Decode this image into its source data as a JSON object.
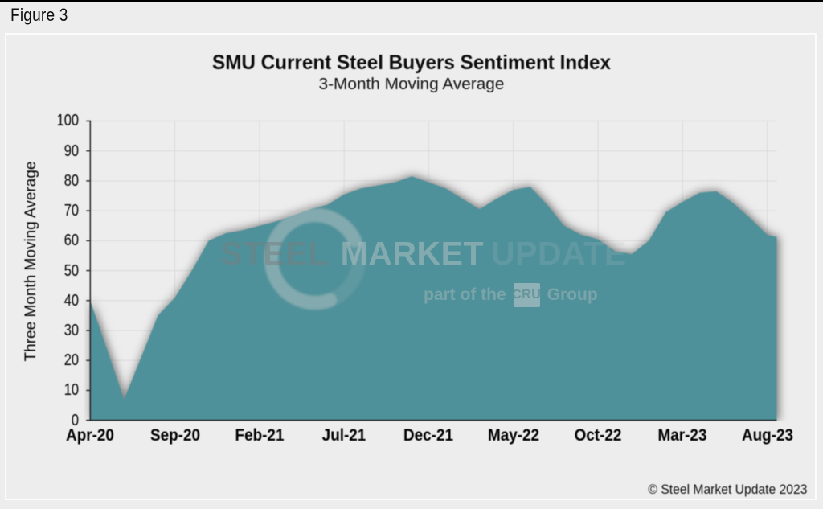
{
  "page": {
    "figure_label": "Figure 3",
    "copyright": "© Steel Market Update 2023"
  },
  "chart": {
    "title": "SMU Current Steel Buyers Sentiment Index",
    "subtitle": "3-Month Moving Average",
    "y_axis_title": "Three Month Moving Average",
    "watermark": {
      "word1": "STEEL",
      "word2": "MARKET",
      "word3": "UPDATE",
      "tagline_prefix": "part of the",
      "tagline_box": "CRU",
      "tagline_suffix": "Group"
    },
    "colors": {
      "area": "#4f919a",
      "axis": "#262626",
      "grid": "#d9d9d9",
      "background": "#ededed"
    }
  },
  "chart_data": {
    "type": "area",
    "title": "SMU Current Steel Buyers Sentiment Index",
    "subtitle": "3-Month Moving Average",
    "xlabel": "",
    "ylabel": "Three Month Moving Average",
    "categories": [
      "Apr-20",
      "May-20",
      "Jun-20",
      "Jul-20",
      "Aug-20",
      "Sep-20",
      "Oct-20",
      "Nov-20",
      "Dec-20",
      "Jan-21",
      "Feb-21",
      "Mar-21",
      "Apr-21",
      "May-21",
      "Jun-21",
      "Jul-21",
      "Aug-21",
      "Sep-21",
      "Oct-21",
      "Nov-21",
      "Dec-21",
      "Jan-22",
      "Feb-22",
      "Mar-22",
      "Apr-22",
      "May-22",
      "Jun-22",
      "Jul-22",
      "Aug-22",
      "Sep-22",
      "Oct-22",
      "Nov-22",
      "Dec-22",
      "Jan-23",
      "Feb-23",
      "Mar-23",
      "Apr-23",
      "May-23",
      "Jun-23",
      "Jul-23",
      "Aug-23"
    ],
    "values": [
      40,
      23.5,
      7,
      21,
      35,
      41,
      50,
      60,
      62.5,
      63.5,
      65,
      66.5,
      68.5,
      70.5,
      72,
      75.5,
      77.5,
      78.5,
      79.5,
      81.5,
      79.5,
      77.5,
      74,
      70.5,
      74,
      77,
      78,
      72,
      65,
      62,
      60.5,
      56.5,
      55.5,
      60,
      69.5,
      73,
      76,
      76.5,
      72.5,
      67.5,
      62
    ],
    "xtick_labels": [
      "Apr-20",
      "Sep-20",
      "Feb-21",
      "Jul-21",
      "Dec-21",
      "May-22",
      "Oct-22",
      "Mar-23",
      "Aug-23"
    ],
    "xtick_every": 5,
    "ylim": [
      0,
      100
    ],
    "ytick_step": 10,
    "yticks": [
      0,
      10,
      20,
      30,
      40,
      50,
      60,
      70,
      80,
      90,
      100
    ],
    "grid": true,
    "legend": false,
    "end_extension": {
      "months": 0.56,
      "value": 61.2
    }
  }
}
